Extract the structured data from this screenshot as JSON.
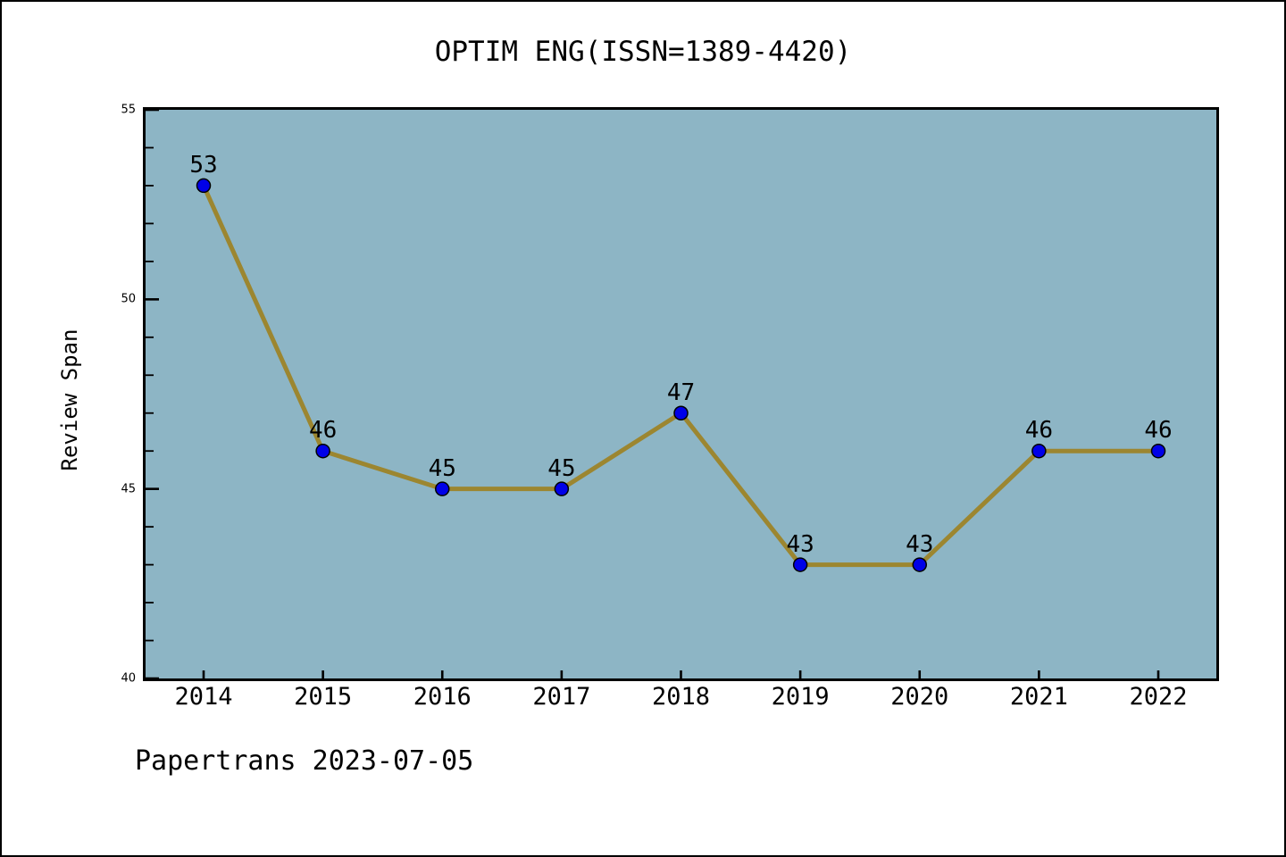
{
  "chart": {
    "title": "OPTIM ENG(ISSN=1389-4420)",
    "ylabel": "Review Span"
  },
  "footer": {
    "text": "Papertrans 2023-07-05"
  },
  "chart_data": {
    "type": "line",
    "title": "OPTIM ENG(ISSN=1389-4420)",
    "xlabel": "",
    "ylabel": "Review Span",
    "categories": [
      "2014",
      "2015",
      "2016",
      "2017",
      "2018",
      "2019",
      "2020",
      "2021",
      "2022"
    ],
    "series": [
      {
        "name": "Review Span",
        "values": [
          53,
          46,
          45,
          45,
          47,
          43,
          43,
          46,
          46
        ]
      }
    ],
    "point_labels": [
      "53",
      "46",
      "45",
      "45",
      "47",
      "43",
      "43",
      "46",
      "46"
    ],
    "ylim": [
      40,
      55
    ],
    "y_major_ticks": [
      40,
      45,
      50,
      55
    ],
    "y_minor_tick_step": 1,
    "grid": false,
    "legend": false,
    "colors": {
      "figure_background": "#ffffff",
      "plot_background": "#8db5c5",
      "line": "#9c8630",
      "marker_fill": "#0000e8",
      "marker_edge": "#000000",
      "spine": "#000000",
      "text": "#000000"
    }
  }
}
